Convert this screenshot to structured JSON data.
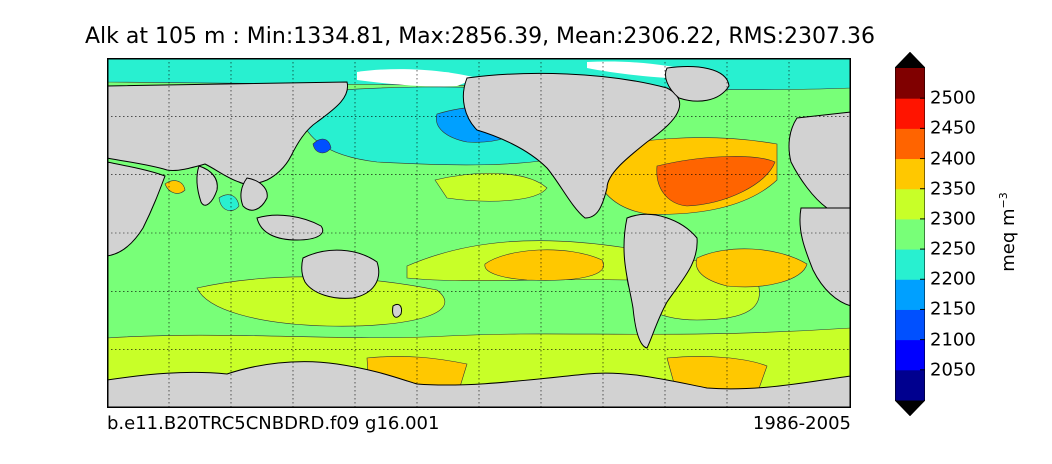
{
  "title": "Alk at 105 m : Min:1334.81, Max:2856.39, Mean:2306.22, RMS:2307.36",
  "footer_left": "b.e11.B20TRC5CNBDRD.f09 g16.001",
  "footer_right": "1986-2005",
  "colorbar": {
    "units_base": "meq m",
    "units_exp": "−3",
    "ticks": [
      "2050",
      "2100",
      "2150",
      "2200",
      "2250",
      "2300",
      "2350",
      "2400",
      "2450",
      "2500"
    ],
    "colors": [
      "#00008f",
      "#0000ff",
      "#0050ff",
      "#00a0ff",
      "#28f0d0",
      "#78ff78",
      "#c8ff28",
      "#ffc800",
      "#ff6400",
      "#ff1400",
      "#800000"
    ],
    "extend_colors": [
      "#000000",
      "#000000"
    ]
  },
  "map_colors": {
    "land": "#d2d2d2",
    "missing": "#ffffff",
    "c2150": "#00a0ff",
    "c2100": "#0050ff",
    "c2200": "#28f0d0",
    "c2250": "#78ff78",
    "c2300": "#c8ff28",
    "c2350": "#ffc800",
    "c2400": "#ff6400"
  }
}
